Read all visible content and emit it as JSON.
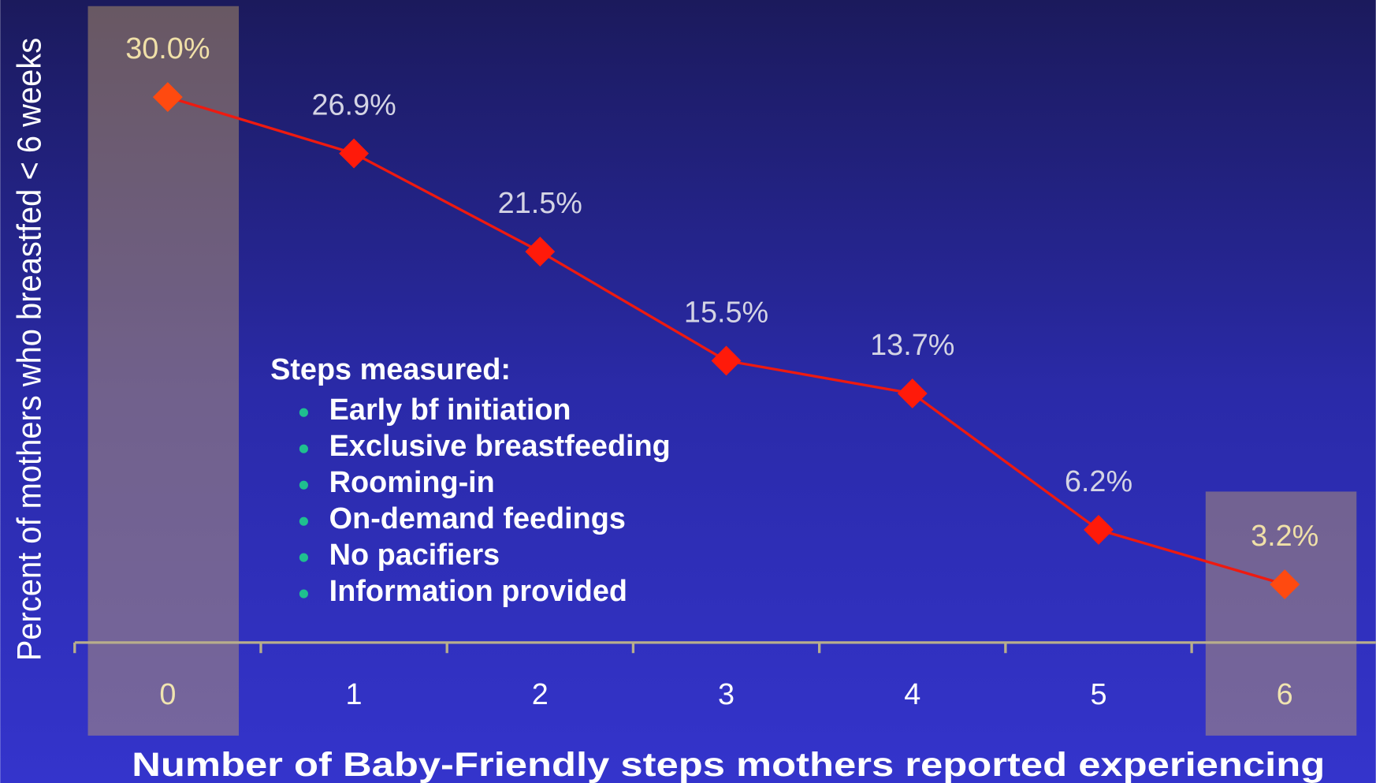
{
  "chart_data": {
    "type": "line",
    "x_label": "Number of Baby-Friendly steps mothers reported experiencing",
    "y_label": "Percent of mothers who breastfed < 6 weeks",
    "categories": [
      "0",
      "1",
      "2",
      "3",
      "4",
      "5",
      "6"
    ],
    "values": [
      30.0,
      26.9,
      21.5,
      15.5,
      13.7,
      6.2,
      3.2
    ],
    "value_labels": [
      "30.0%",
      "26.9%",
      "21.5%",
      "15.5%",
      "13.7%",
      "6.2%",
      "3.2%"
    ],
    "color": "#ee1a10",
    "ylim": [
      0,
      35
    ],
    "annotation": {
      "title": "Steps measured:",
      "items": [
        "Early bf initiation",
        "Exclusive breastfeeding",
        "Rooming-in",
        "On-demand feedings",
        "No pacifiers",
        "Information provided"
      ]
    }
  }
}
